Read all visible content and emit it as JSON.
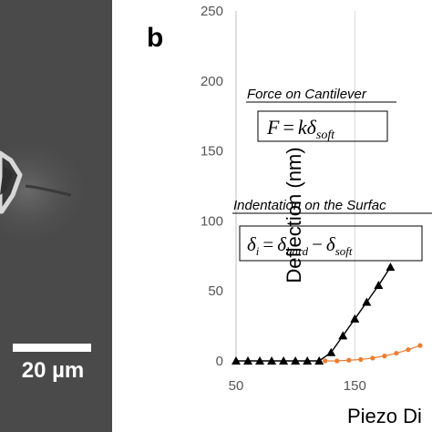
{
  "scale_bar": {
    "label": "20 µm"
  },
  "panel_label": "b",
  "chart_data": {
    "type": "line",
    "title": "",
    "xlabel": "Piezo Di",
    "ylabel": "Deflection (nm)",
    "xlim": [
      50,
      215
    ],
    "ylim": [
      0,
      250
    ],
    "yticks": [
      0,
      50,
      100,
      150,
      200,
      250
    ],
    "xticks": [
      50,
      150
    ],
    "grid": "vertical",
    "colors": {
      "black_series": "#000000",
      "orange_series": "#ed7d31"
    },
    "series": [
      {
        "marker": "triangle",
        "color": "#000000",
        "x": [
          50,
          60,
          70,
          80,
          90,
          100,
          110,
          120,
          130,
          140,
          150,
          160,
          170,
          180
        ],
        "y": [
          0,
          0,
          0,
          0,
          0,
          0,
          0,
          0,
          6,
          18,
          30,
          42,
          54,
          67
        ]
      },
      {
        "marker": "circle",
        "color": "#ed7d31",
        "x": [
          125,
          135,
          145,
          155,
          165,
          175,
          185,
          195,
          205
        ],
        "y": [
          0,
          0,
          0.5,
          1,
          2,
          3.5,
          5.5,
          8,
          11
        ]
      }
    ],
    "annotations": [
      {
        "title": "Force on Cantilever",
        "equation": "F = kδsoft"
      },
      {
        "title": "Indentation on the Surfac",
        "equation": "δi = δhard − δsoft"
      }
    ]
  }
}
